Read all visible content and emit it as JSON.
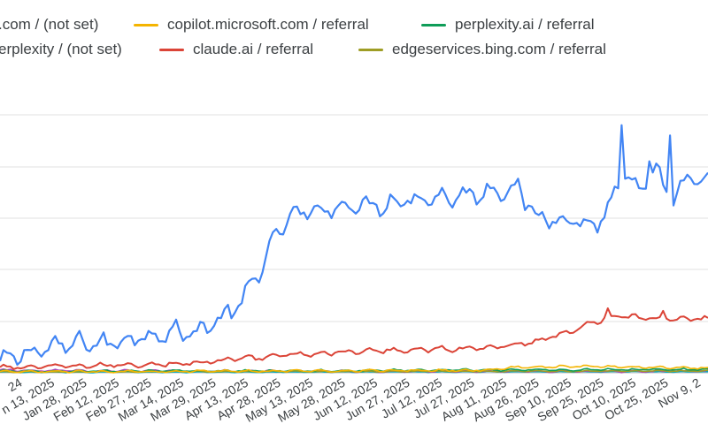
{
  "legend": {
    "items": [
      {
        "label": ".com / (not set)",
        "color": "#4285f4"
      },
      {
        "label": "copilot.microsoft.com / referral",
        "color": "#f4b400"
      },
      {
        "label": "perplexity.ai / referral",
        "color": "#0f9d58"
      },
      {
        "label": "erplexity / (not set)",
        "color": "#4285f4"
      },
      {
        "label": "claude.ai / referral",
        "color": "#db4437"
      },
      {
        "label": "edgeservices.bing.com / referral",
        "color": "#9e9d24"
      }
    ]
  },
  "chart_data": {
    "type": "line",
    "title": "",
    "xlabel": "",
    "ylabel": "",
    "grid": true,
    "legend_position": "top",
    "x_tick_labels": [
      "24",
      "n 13, 2025",
      "Jan 28, 2025",
      "Feb 12, 2025",
      "Feb 27, 2025",
      "Mar 14, 2025",
      "Mar 29, 2025",
      "Apr 13, 2025",
      "Apr 28, 2025",
      "May 13, 2025",
      "May 28, 2025",
      "Jun 12, 2025",
      "Jun 27, 2025",
      "Jul 12, 2025",
      "Jul 27, 2025",
      "Aug 11, 2025",
      "Aug 26, 2025",
      "Sep 10, 2025",
      "Sep 25, 2025",
      "Oct 10, 2025",
      "Oct 25, 2025",
      "Nov 9, 2",
      "No"
    ],
    "y_range": [
      0,
      100
    ],
    "series": [
      {
        "name": ".com / (not set)",
        "color": "#4285f4",
        "anchors": [
          [
            0,
            4
          ],
          [
            8,
            8
          ],
          [
            16,
            10
          ],
          [
            25,
            12
          ],
          [
            30,
            11
          ],
          [
            40,
            14
          ],
          [
            50,
            16
          ],
          [
            55,
            15
          ],
          [
            63,
            20
          ],
          [
            70,
            27
          ],
          [
            77,
            45
          ],
          [
            83,
            60
          ],
          [
            89,
            62
          ],
          [
            100,
            65
          ],
          [
            110,
            65
          ],
          [
            115,
            67
          ],
          [
            125,
            68
          ],
          [
            130,
            68
          ],
          [
            140,
            70
          ],
          [
            150,
            72
          ],
          [
            155,
            60
          ],
          [
            165,
            60
          ],
          [
            170,
            57
          ],
          [
            175,
            60
          ],
          [
            180,
            77
          ],
          [
            185,
            70
          ],
          [
            190,
            77
          ],
          [
            195,
            68
          ],
          [
            200,
            75
          ],
          [
            205,
            73
          ]
        ],
        "noise": 4.5,
        "spikes": [
          [
            180,
            96
          ],
          [
            194,
            92
          ],
          [
            188,
            82
          ]
        ]
      },
      {
        "name": "claude.ai / referral",
        "color": "#db4437",
        "anchors": [
          [
            0,
            2
          ],
          [
            20,
            2.5
          ],
          [
            50,
            3.5
          ],
          [
            60,
            4
          ],
          [
            68,
            5.5
          ],
          [
            75,
            6
          ],
          [
            85,
            7
          ],
          [
            100,
            8
          ],
          [
            120,
            9
          ],
          [
            140,
            9.5
          ],
          [
            155,
            12
          ],
          [
            165,
            16
          ],
          [
            170,
            19
          ],
          [
            178,
            22
          ],
          [
            190,
            21
          ],
          [
            205,
            21
          ]
        ],
        "noise": 1.2,
        "spikes": [
          [
            176,
            25
          ],
          [
            192,
            24
          ]
        ]
      },
      {
        "name": "copilot.microsoft.com / referral",
        "color": "#f4b400",
        "anchors": [
          [
            0,
            0.4
          ],
          [
            60,
            0.6
          ],
          [
            100,
            0.8
          ],
          [
            140,
            1.0
          ],
          [
            150,
            2.2
          ],
          [
            170,
            2.5
          ],
          [
            205,
            1.8
          ]
        ],
        "noise": 0.5,
        "spikes": []
      },
      {
        "name": "perplexity.ai / referral",
        "color": "#0f9d58",
        "anchors": [
          [
            0,
            0.6
          ],
          [
            60,
            0.7
          ],
          [
            100,
            0.9
          ],
          [
            140,
            1.1
          ],
          [
            205,
            1.3
          ]
        ],
        "noise": 0.5,
        "spikes": []
      },
      {
        "name": "edgeservices.bing.com / referral",
        "color": "#9e9d24",
        "anchors": [
          [
            0,
            0.3
          ],
          [
            100,
            0.5
          ],
          [
            205,
            0.7
          ]
        ],
        "noise": 0.3,
        "spikes": []
      },
      {
        "name": "",
        "color": "#ab47bc",
        "anchors": [
          [
            0,
            1.0
          ],
          [
            30,
            0.8
          ],
          [
            60,
            0.7
          ],
          [
            100,
            0.6
          ],
          [
            205,
            0.6
          ]
        ],
        "noise": 0.5,
        "spikes": []
      },
      {
        "name": "",
        "color": "#00acc1",
        "anchors": [
          [
            0,
            0.2
          ],
          [
            100,
            0.3
          ],
          [
            205,
            0.4
          ]
        ],
        "noise": 0.2,
        "spikes": []
      }
    ]
  }
}
